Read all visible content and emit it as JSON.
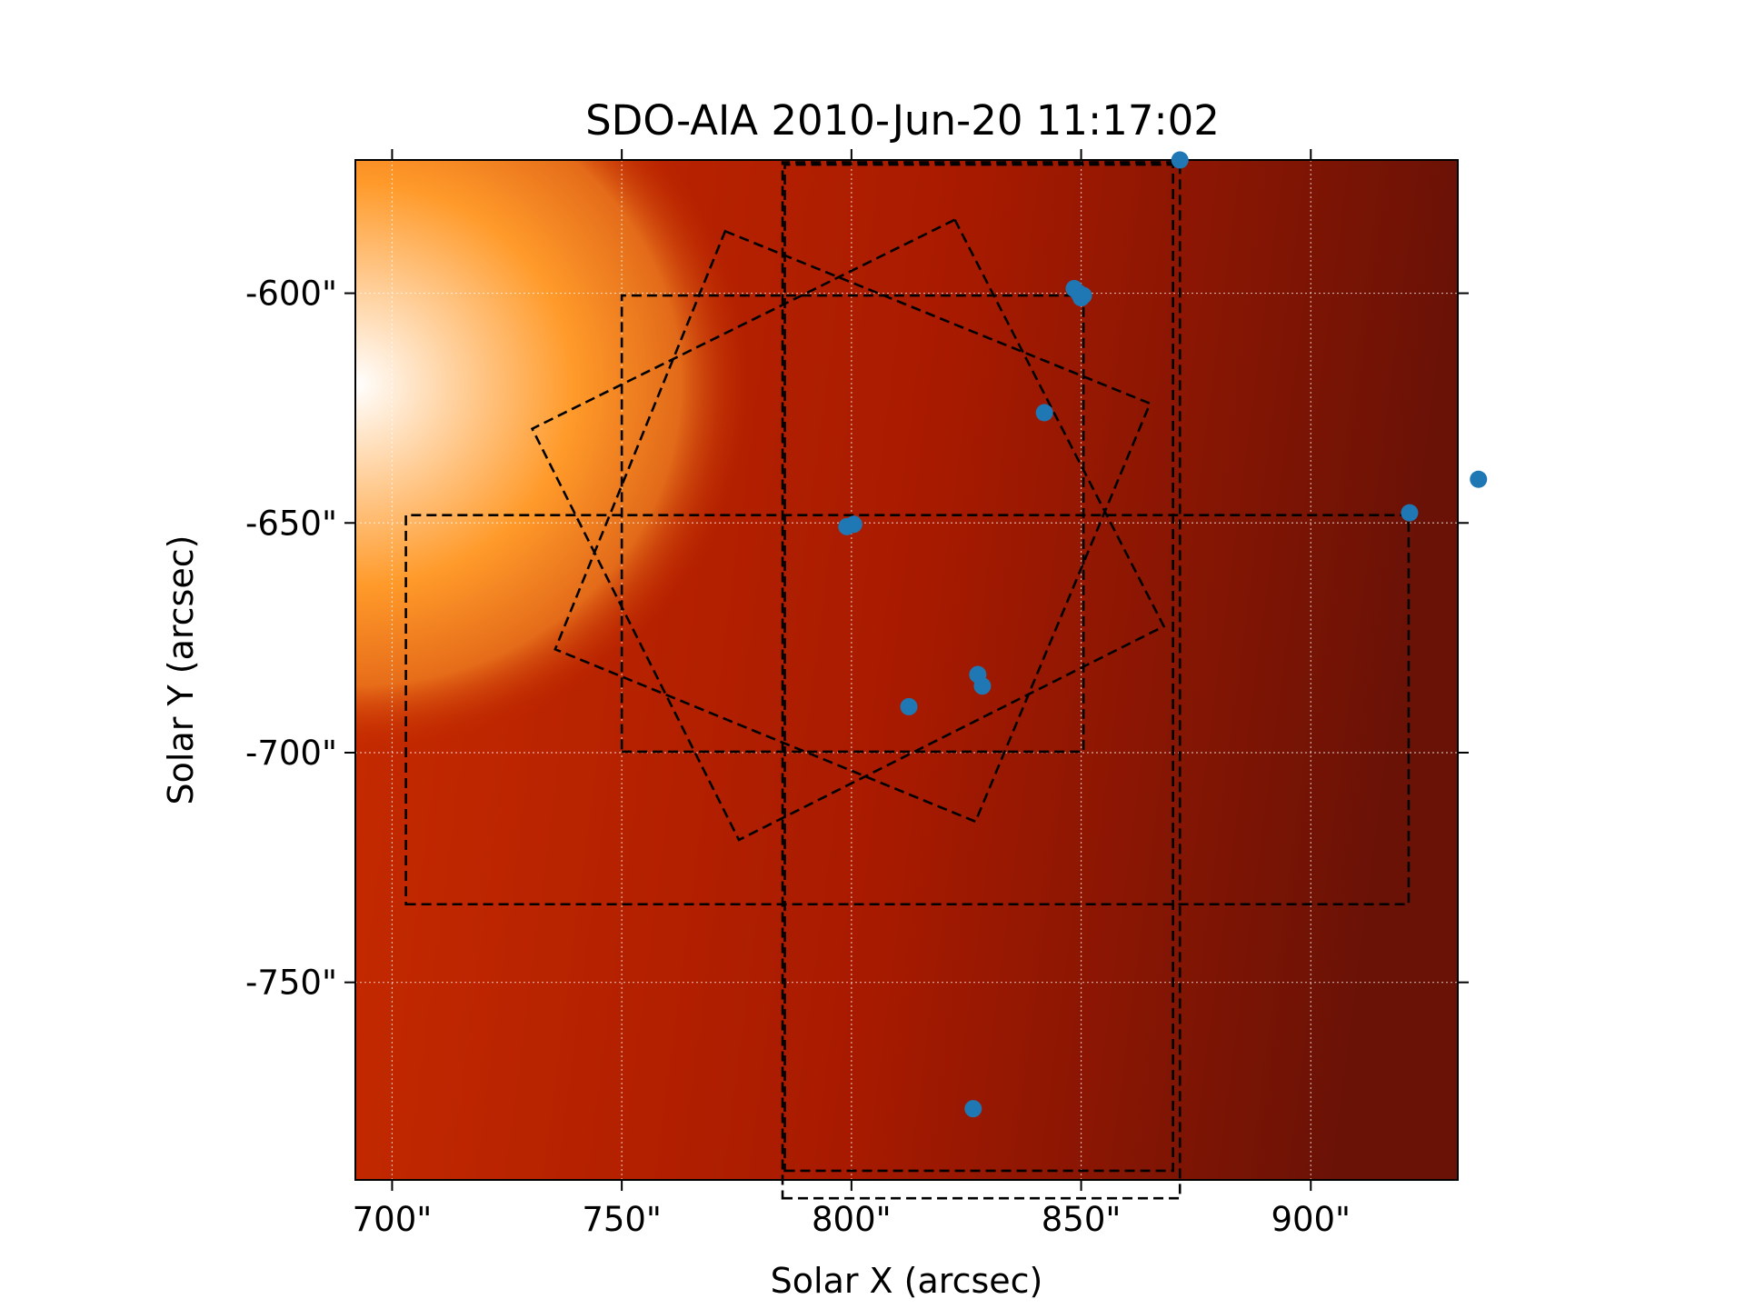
{
  "chart_data": {
    "type": "scatter",
    "title": "SDO-AIA   2010-Jun-20 11:17:02",
    "xlabel": "Solar X (arcsec)",
    "ylabel": "Solar Y (arcsec)",
    "xlim": [
      692,
      932
    ],
    "ylim": [
      -793,
      -571
    ],
    "x_ticks": [
      700,
      750,
      800,
      850,
      900
    ],
    "x_tick_labels": [
      "700\"",
      "750\"",
      "800\"",
      "850\"",
      "900\""
    ],
    "y_ticks": [
      -600,
      -650,
      -700,
      -750
    ],
    "y_tick_labels": [
      "-600\"",
      "-650\"",
      "-700\"",
      "-750\""
    ],
    "grid": true,
    "colormap": [
      "#ffffff",
      "#ff9a2a",
      "#c82c00",
      "#a81a00",
      "#6a1206"
    ],
    "marker_color": "#1f77b4",
    "frame_color": "#000000",
    "points": [
      {
        "x": 871.5,
        "y": -571.0
      },
      {
        "x": 848.5,
        "y": -599.0
      },
      {
        "x": 849.5,
        "y": -600.0
      },
      {
        "x": 850.0,
        "y": -601.0
      },
      {
        "x": 850.5,
        "y": -600.5
      },
      {
        "x": 842.0,
        "y": -626.0
      },
      {
        "x": 799.0,
        "y": -650.8
      },
      {
        "x": 800.5,
        "y": -650.3
      },
      {
        "x": 921.5,
        "y": -647.8
      },
      {
        "x": 936.5,
        "y": -640.5
      },
      {
        "x": 827.5,
        "y": -683.0
      },
      {
        "x": 828.5,
        "y": -685.5
      },
      {
        "x": 812.5,
        "y": -690.0
      },
      {
        "x": 826.5,
        "y": -777.5
      }
    ],
    "boxes": [
      {
        "type": "rect",
        "x0": 750.0,
        "y0": -699.8,
        "x1": 850.5,
        "y1": -600.5
      },
      {
        "type": "rect",
        "x0": 703.0,
        "y0": -733.0,
        "x1": 921.3,
        "y1": -648.3
      },
      {
        "type": "rect",
        "x0": 785.5,
        "y0": -791.0,
        "x1": 870.0,
        "y1": -572.0
      },
      {
        "type": "rect",
        "x0": 785.0,
        "y0": -797.0,
        "x1": 871.5,
        "y1": -571.5
      },
      {
        "type": "polygon",
        "points": [
          [
            772.5,
            -586.5
          ],
          [
            865.0,
            -624.0
          ],
          [
            827.0,
            -715.0
          ],
          [
            735.5,
            -677.5
          ]
        ]
      },
      {
        "type": "polygon",
        "points": [
          [
            822.5,
            -584.0
          ],
          [
            868.0,
            -672.5
          ],
          [
            775.5,
            -719.0
          ],
          [
            730.5,
            -629.5
          ]
        ]
      }
    ]
  }
}
